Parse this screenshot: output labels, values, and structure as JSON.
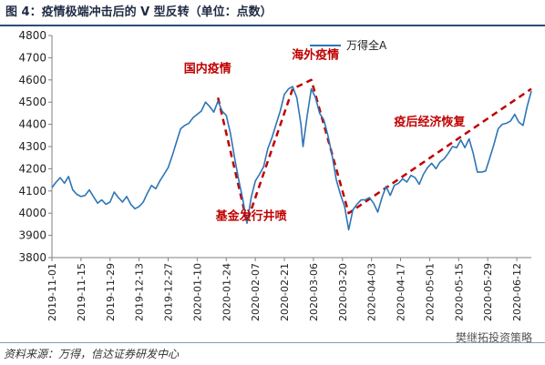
{
  "header": {
    "title": "图 4：疫情极端冲击后的 V 型反转（单位：点数）"
  },
  "footer": {
    "source": "资料来源：万得，信达证券研发中心",
    "watermark": "樊继拓投资策略"
  },
  "colors": {
    "series": "#2e75b6",
    "trend": "#c00000",
    "annotation": "#c00000",
    "axis": "#808080"
  },
  "chart_data": {
    "type": "line",
    "title": "",
    "xlabel": "",
    "ylabel": "",
    "ylim": [
      3800,
      4800
    ],
    "yticks": [
      3800,
      3900,
      4000,
      4100,
      4200,
      4300,
      4400,
      4500,
      4600,
      4700,
      4800
    ],
    "xlim": [
      "2019-11-01",
      "2020-06-19"
    ],
    "xticks": [
      "2019-11-01",
      "2019-11-15",
      "2019-11-29",
      "2019-12-13",
      "2019-12-27",
      "2020-01-10",
      "2020-01-24",
      "2020-02-07",
      "2020-02-21",
      "2020-03-06",
      "2020-03-20",
      "2020-04-03",
      "2020-04-17",
      "2020-05-01",
      "2020-05-15",
      "2020-05-29",
      "2020-06-12"
    ],
    "legend": {
      "position": "top-center"
    },
    "series": [
      {
        "name": "万得全A",
        "points": [
          [
            "2019-11-01",
            4115
          ],
          [
            "2019-11-03",
            4140
          ],
          [
            "2019-11-05",
            4160
          ],
          [
            "2019-11-07",
            4135
          ],
          [
            "2019-11-09",
            4165
          ],
          [
            "2019-11-11",
            4105
          ],
          [
            "2019-11-13",
            4085
          ],
          [
            "2019-11-15",
            4075
          ],
          [
            "2019-11-17",
            4080
          ],
          [
            "2019-11-19",
            4105
          ],
          [
            "2019-11-21",
            4075
          ],
          [
            "2019-11-23",
            4045
          ],
          [
            "2019-11-25",
            4060
          ],
          [
            "2019-11-27",
            4040
          ],
          [
            "2019-11-29",
            4050
          ],
          [
            "2019-12-01",
            4095
          ],
          [
            "2019-12-03",
            4070
          ],
          [
            "2019-12-05",
            4050
          ],
          [
            "2019-12-07",
            4075
          ],
          [
            "2019-12-09",
            4040
          ],
          [
            "2019-12-11",
            4020
          ],
          [
            "2019-12-13",
            4030
          ],
          [
            "2019-12-15",
            4050
          ],
          [
            "2019-12-17",
            4090
          ],
          [
            "2019-12-19",
            4125
          ],
          [
            "2019-12-21",
            4110
          ],
          [
            "2019-12-23",
            4145
          ],
          [
            "2019-12-25",
            4175
          ],
          [
            "2019-12-27",
            4205
          ],
          [
            "2019-12-29",
            4260
          ],
          [
            "2019-12-31",
            4320
          ],
          [
            "2020-01-02",
            4380
          ],
          [
            "2020-01-04",
            4395
          ],
          [
            "2020-01-06",
            4405
          ],
          [
            "2020-01-08",
            4430
          ],
          [
            "2020-01-10",
            4445
          ],
          [
            "2020-01-12",
            4460
          ],
          [
            "2020-01-14",
            4500
          ],
          [
            "2020-01-16",
            4480
          ],
          [
            "2020-01-18",
            4455
          ],
          [
            "2020-01-20",
            4505
          ],
          [
            "2020-01-22",
            4460
          ],
          [
            "2020-01-24",
            4440
          ],
          [
            "2020-01-26",
            4360
          ],
          [
            "2020-01-28",
            4250
          ],
          [
            "2020-01-30",
            4150
          ],
          [
            "2020-02-01",
            4060
          ],
          [
            "2020-02-03",
            3955
          ],
          [
            "2020-02-05",
            4070
          ],
          [
            "2020-02-07",
            4145
          ],
          [
            "2020-02-09",
            4175
          ],
          [
            "2020-02-11",
            4210
          ],
          [
            "2020-02-13",
            4290
          ],
          [
            "2020-02-15",
            4340
          ],
          [
            "2020-02-17",
            4400
          ],
          [
            "2020-02-19",
            4460
          ],
          [
            "2020-02-21",
            4535
          ],
          [
            "2020-02-23",
            4560
          ],
          [
            "2020-02-25",
            4570
          ],
          [
            "2020-02-27",
            4520
          ],
          [
            "2020-02-29",
            4400
          ],
          [
            "2020-03-01",
            4300
          ],
          [
            "2020-03-03",
            4440
          ],
          [
            "2020-03-05",
            4560
          ],
          [
            "2020-03-07",
            4520
          ],
          [
            "2020-03-09",
            4450
          ],
          [
            "2020-03-11",
            4420
          ],
          [
            "2020-03-13",
            4350
          ],
          [
            "2020-03-15",
            4260
          ],
          [
            "2020-03-17",
            4150
          ],
          [
            "2020-03-19",
            4085
          ],
          [
            "2020-03-21",
            4030
          ],
          [
            "2020-03-23",
            3925
          ],
          [
            "2020-03-25",
            4015
          ],
          [
            "2020-03-27",
            4040
          ],
          [
            "2020-03-29",
            4060
          ],
          [
            "2020-03-31",
            4060
          ],
          [
            "2020-04-02",
            4070
          ],
          [
            "2020-04-04",
            4045
          ],
          [
            "2020-04-06",
            4005
          ],
          [
            "2020-04-08",
            4070
          ],
          [
            "2020-04-10",
            4120
          ],
          [
            "2020-04-12",
            4080
          ],
          [
            "2020-04-14",
            4125
          ],
          [
            "2020-04-16",
            4135
          ],
          [
            "2020-04-18",
            4155
          ],
          [
            "2020-04-20",
            4140
          ],
          [
            "2020-04-22",
            4170
          ],
          [
            "2020-04-24",
            4160
          ],
          [
            "2020-04-26",
            4130
          ],
          [
            "2020-04-28",
            4175
          ],
          [
            "2020-04-30",
            4205
          ],
          [
            "2020-05-02",
            4225
          ],
          [
            "2020-05-04",
            4200
          ],
          [
            "2020-05-06",
            4230
          ],
          [
            "2020-05-08",
            4245
          ],
          [
            "2020-05-10",
            4270
          ],
          [
            "2020-05-12",
            4300
          ],
          [
            "2020-05-14",
            4295
          ],
          [
            "2020-05-16",
            4330
          ],
          [
            "2020-05-18",
            4295
          ],
          [
            "2020-05-20",
            4335
          ],
          [
            "2020-05-22",
            4270
          ],
          [
            "2020-05-24",
            4185
          ],
          [
            "2020-05-26",
            4185
          ],
          [
            "2020-05-28",
            4190
          ],
          [
            "2020-05-30",
            4250
          ],
          [
            "2020-06-01",
            4310
          ],
          [
            "2020-06-03",
            4380
          ],
          [
            "2020-06-05",
            4400
          ],
          [
            "2020-06-07",
            4405
          ],
          [
            "2020-06-09",
            4415
          ],
          [
            "2020-06-11",
            4445
          ],
          [
            "2020-06-13",
            4410
          ],
          [
            "2020-06-15",
            4395
          ],
          [
            "2020-06-17",
            4480
          ],
          [
            "2020-06-19",
            4550
          ]
        ]
      }
    ],
    "annotations": [
      {
        "text": "国内疫情",
        "x": "2020-01-15",
        "y": 4635
      },
      {
        "text": "基金发行井喷",
        "x": "2020-02-05",
        "y": 3970
      },
      {
        "text": "海外疫情",
        "x": "2020-03-07",
        "y": 4695
      },
      {
        "text": "疫后经济恢复",
        "x": "2020-05-01",
        "y": 4395
      }
    ],
    "trend_lines": [
      {
        "points": [
          [
            "2020-01-20",
            4520
          ],
          [
            "2020-02-03",
            3960
          ],
          [
            "2020-02-25",
            4560
          ],
          [
            "2020-03-05",
            4600
          ],
          [
            "2020-03-23",
            4000
          ],
          [
            "2020-06-19",
            4560
          ]
        ]
      }
    ]
  }
}
